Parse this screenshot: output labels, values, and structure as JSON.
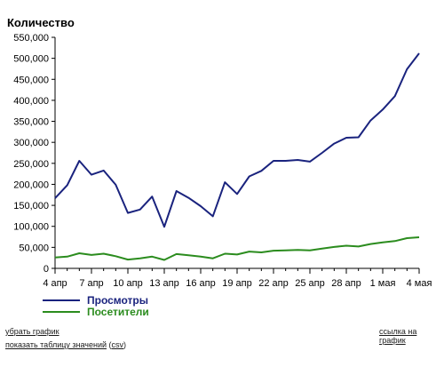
{
  "chart_data": {
    "type": "line",
    "ylabel": "Количество",
    "ylim": [
      0,
      550000
    ],
    "y_ticks": [
      "0",
      "50,000",
      "100,000",
      "150,000",
      "200,000",
      "250,000",
      "300,000",
      "350,000",
      "400,000",
      "450,000",
      "500,000",
      "550,000"
    ],
    "x_ticks": [
      "4 апр",
      "7 апр",
      "10 апр",
      "13 апр",
      "16 апр",
      "19 апр",
      "22 апр",
      "25 апр",
      "28 апр",
      "1 мая",
      "4 мая"
    ],
    "x": [
      "4 апр",
      "5 апр",
      "6 апр",
      "7 апр",
      "8 апр",
      "9 апр",
      "10 апр",
      "11 апр",
      "12 апр",
      "13 апр",
      "14 апр",
      "15 апр",
      "16 апр",
      "17 апр",
      "18 апр",
      "19 апр",
      "20 апр",
      "21 апр",
      "22 апр",
      "23 апр",
      "24 апр",
      "25 апр",
      "26 апр",
      "27 апр",
      "28 апр",
      "29 апр",
      "30 апр",
      "1 мая",
      "2 мая",
      "3 мая",
      "4 мая"
    ],
    "grid": false,
    "legend_position": "bottom-left",
    "series": [
      {
        "name": "Просмотры",
        "color": "#1a237e",
        "values": [
          167000,
          198000,
          256000,
          223000,
          233000,
          199000,
          132000,
          140000,
          171000,
          99000,
          184000,
          168000,
          148000,
          124000,
          205000,
          177000,
          219000,
          232000,
          256000,
          256000,
          258000,
          254000,
          275000,
          297000,
          311000,
          312000,
          352000,
          378000,
          410000,
          474000,
          512000
        ]
      },
      {
        "name": "Посетители",
        "color": "#2b8c1e",
        "values": [
          26000,
          28000,
          36000,
          32000,
          35000,
          29000,
          21000,
          24000,
          28000,
          20000,
          34000,
          31000,
          28000,
          24000,
          35000,
          33000,
          40000,
          38000,
          42000,
          43000,
          44000,
          43000,
          47000,
          51000,
          54000,
          52000,
          58000,
          62000,
          65000,
          72000,
          74000
        ]
      }
    ]
  },
  "footer": {
    "remove_chart": "убрать график",
    "show_table": "показать таблицу значений",
    "csv_label": "csv",
    "chart_link": "ссылка на график"
  }
}
